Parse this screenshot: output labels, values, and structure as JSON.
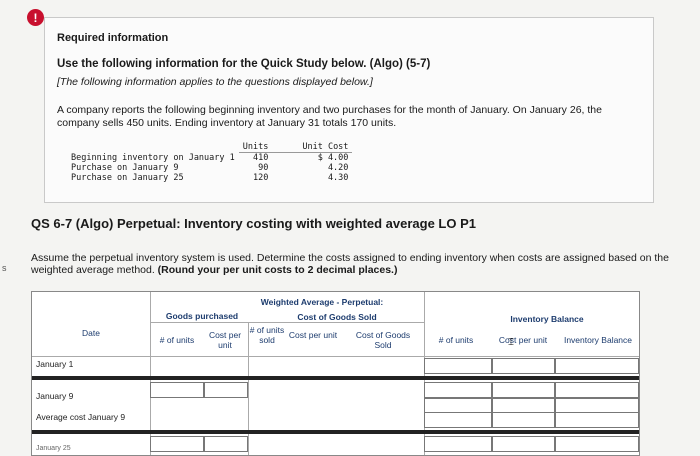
{
  "alert_symbol": "!",
  "info": {
    "required": "Required information",
    "use": "Use the following information for the Quick Study below. (Algo) (5-7)",
    "note": "[The following information applies to the questions displayed below.]",
    "description": "A company reports the following beginning inventory and two purchases for the month of January. On January 26, the company sells 450 units. Ending inventory at January 31 totals 170 units.",
    "table": {
      "headers": [
        "Units",
        "Unit Cost"
      ],
      "rows": [
        {
          "label": "Beginning inventory on January 1",
          "units": "410",
          "cost": "$ 4.00"
        },
        {
          "label": "Purchase on January 9",
          "units": "90",
          "cost": "4.20"
        },
        {
          "label": "Purchase on January 25",
          "units": "120",
          "cost": "4.30"
        }
      ]
    }
  },
  "question": {
    "title": "QS 6-7 (Algo) Perpetual: Inventory costing with weighted average LO P1",
    "instructions": "Assume the perpetual inventory system is used. Determine the costs assigned to ending inventory when costs are assigned based on the weighted average method.",
    "instructions_bold": "(Round your per unit costs to 2 decimal places.)",
    "side_mark": "s"
  },
  "worksheet": {
    "date_header": "Date",
    "goods_purchased": "Goods purchased",
    "wa_title": "Weighted Average - Perpetual:",
    "cogs_header": "Cost of Goods Sold",
    "inv_balance": "Inventory Balance",
    "gp_units": "# of units",
    "gp_cost": "Cost per unit",
    "sold_units": "# of units sold",
    "cogs_cost": "Cost per unit",
    "cogs_total": "Cost of Goods Sold",
    "ib_units": "# of units",
    "ib_cost": "Cost per unit",
    "ib_total": "Inventory Balance",
    "rows": [
      "January 1",
      "January 9",
      "Average cost January 9",
      "January 25"
    ]
  }
}
